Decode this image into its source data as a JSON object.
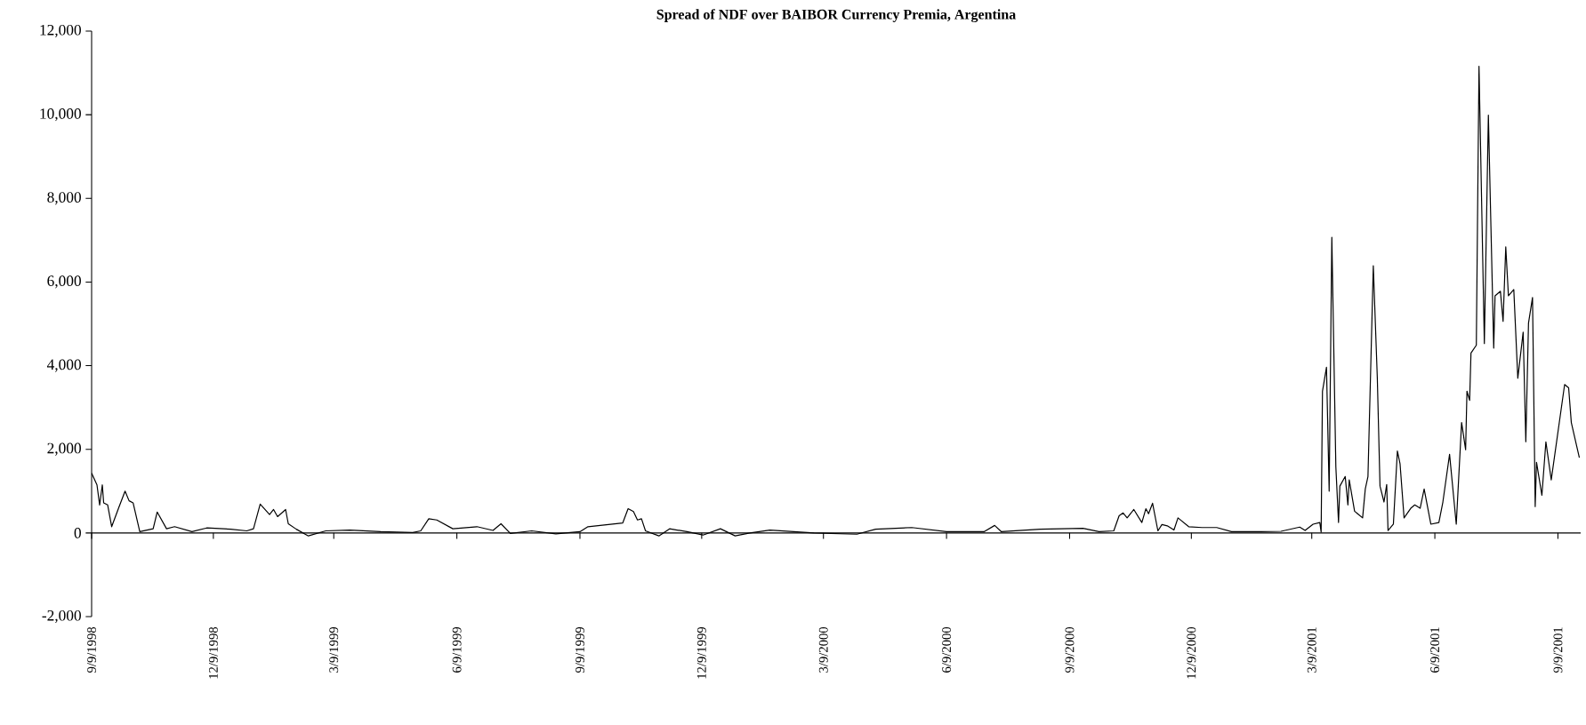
{
  "chart_data": {
    "type": "line",
    "title": "Spread of  NDF over BAIBOR Currency Premia, Argentina",
    "x": [
      "1998-09-09",
      "1998-09-13",
      "1998-09-15",
      "1998-09-17",
      "1998-09-18",
      "1998-09-21",
      "1998-09-24",
      "1998-09-29",
      "1998-10-04",
      "1998-10-07",
      "1998-10-10",
      "1998-10-15",
      "1998-10-25",
      "1998-10-28",
      "1998-11-04",
      "1998-11-10",
      "1998-11-23",
      "1998-12-04",
      "1998-12-22",
      "1999-01-03",
      "1999-01-08",
      "1999-01-13",
      "1999-01-20",
      "1999-01-23",
      "1999-01-26",
      "1999-02-01",
      "1999-02-03",
      "1999-02-09",
      "1999-02-18",
      "1999-03-03",
      "1999-03-21",
      "1999-04-13",
      "1999-05-07",
      "1999-05-13",
      "1999-05-19",
      "1999-05-25",
      "1999-06-06",
      "1999-06-24",
      "1999-07-06",
      "1999-07-12",
      "1999-07-19",
      "1999-08-04",
      "1999-08-22",
      "1999-09-09",
      "1999-09-15",
      "1999-10-11",
      "1999-10-15",
      "1999-10-19",
      "1999-10-22",
      "1999-10-25",
      "1999-10-28",
      "1999-11-07",
      "1999-11-15",
      "1999-11-28",
      "1999-12-10",
      "1999-12-23",
      "2000-01-03",
      "2000-01-14",
      "2000-01-29",
      "2000-03-02",
      "2000-04-03",
      "2000-04-17",
      "2000-05-14",
      "2000-06-09",
      "2000-07-07",
      "2000-07-15",
      "2000-07-20",
      "2000-08-18",
      "2000-09-19",
      "2000-10-01",
      "2000-10-12",
      "2000-10-16",
      "2000-10-19",
      "2000-10-22",
      "2000-10-27",
      "2000-11-02",
      "2000-11-05",
      "2000-11-07",
      "2000-11-10",
      "2000-11-14",
      "2000-11-17",
      "2000-11-21",
      "2000-11-26",
      "2000-11-29",
      "2000-12-07",
      "2000-12-17",
      "2000-12-28",
      "2001-01-08",
      "2001-01-30",
      "2001-02-14",
      "2001-02-28",
      "2001-03-04",
      "2001-03-10",
      "2001-03-15",
      "2001-03-16",
      "2001-03-17",
      "2001-03-20",
      "2001-03-22",
      "2001-03-24",
      "2001-03-27",
      "2001-03-29",
      "2001-03-30",
      "2001-04-03",
      "2001-04-05",
      "2001-04-06",
      "2001-04-10",
      "2001-04-16",
      "2001-04-18",
      "2001-04-20",
      "2001-04-24",
      "2001-04-27",
      "2001-04-29",
      "2001-05-02",
      "2001-05-04",
      "2001-05-05",
      "2001-05-09",
      "2001-05-12",
      "2001-05-14",
      "2001-05-17",
      "2001-05-22",
      "2001-05-25",
      "2001-05-29",
      "2001-06-01",
      "2001-06-06",
      "2001-06-12",
      "2001-06-15",
      "2001-06-20",
      "2001-06-25",
      "2001-06-29",
      "2001-07-02",
      "2001-07-03",
      "2001-07-05",
      "2001-07-06",
      "2001-07-10",
      "2001-07-12",
      "2001-07-16",
      "2001-07-19",
      "2001-07-23",
      "2001-07-24",
      "2001-07-28",
      "2001-07-30",
      "2001-08-01",
      "2001-08-03",
      "2001-08-07",
      "2001-08-10",
      "2001-08-14",
      "2001-08-16",
      "2001-08-18",
      "2001-08-21",
      "2001-08-23",
      "2001-08-24",
      "2001-08-28",
      "2001-08-31",
      "2001-09-04",
      "2001-09-14",
      "2001-09-17",
      "2001-09-19",
      "2001-09-25"
    ],
    "series": [
      {
        "color": "#000000",
        "values": [
          1430,
          1150,
          670,
          1150,
          720,
          670,
          150,
          580,
          1000,
          770,
          720,
          30,
          100,
          500,
          100,
          150,
          30,
          120,
          90,
          50,
          100,
          690,
          440,
          560,
          390,
          560,
          220,
          90,
          -70,
          50,
          70,
          30,
          10,
          50,
          340,
          310,
          100,
          150,
          60,
          220,
          -10,
          50,
          -20,
          30,
          150,
          240,
          580,
          510,
          310,
          340,
          50,
          -70,
          100,
          30,
          -50,
          100,
          -70,
          0,
          70,
          0,
          -30,
          90,
          130,
          30,
          30,
          180,
          30,
          90,
          110,
          30,
          50,
          410,
          480,
          360,
          560,
          250,
          580,
          460,
          710,
          50,
          200,
          170,
          70,
          360,
          150,
          130,
          130,
          30,
          30,
          40,
          140,
          60,
          210,
          250,
          20,
          3390,
          3960,
          1000,
          7070,
          1580,
          250,
          1120,
          1350,
          670,
          1270,
          520,
          360,
          1050,
          1350,
          6390,
          3700,
          1120,
          740,
          1160,
          60,
          210,
          1960,
          1650,
          360,
          590,
          670,
          590,
          1050,
          210,
          250,
          740,
          1880,
          210,
          2640,
          1990,
          3390,
          3170,
          4300,
          4490,
          11160,
          4530,
          9990,
          4420,
          5670,
          5780,
          5060,
          6840,
          5670,
          5820,
          3700,
          4800,
          2180,
          5020,
          5630,
          630,
          1690,
          900,
          2180,
          1270,
          3550,
          3470,
          2640,
          1800
        ]
      }
    ],
    "xlim": [
      "1998-09-09",
      "2001-09-26"
    ],
    "ylim": [
      -2000,
      12000
    ],
    "xticks": [
      {
        "value": "1998-09-09",
        "label": "9/9/1998"
      },
      {
        "value": "1998-12-09",
        "label": "12/9/1998"
      },
      {
        "value": "1999-03-09",
        "label": "3/9/1999"
      },
      {
        "value": "1999-06-09",
        "label": "6/9/1999"
      },
      {
        "value": "1999-09-09",
        "label": "9/9/1999"
      },
      {
        "value": "1999-12-09",
        "label": "12/9/1999"
      },
      {
        "value": "2000-03-09",
        "label": "3/9/2000"
      },
      {
        "value": "2000-06-09",
        "label": "6/9/2000"
      },
      {
        "value": "2000-09-09",
        "label": "9/9/2000"
      },
      {
        "value": "2000-12-09",
        "label": "12/9/2000"
      },
      {
        "value": "2001-03-09",
        "label": "3/9/2001"
      },
      {
        "value": "2001-06-09",
        "label": "6/9/2001"
      },
      {
        "value": "2001-09-09",
        "label": "9/9/2001"
      }
    ],
    "yticks": [
      {
        "value": -2000,
        "label": "-2,000"
      },
      0,
      {
        "value": 2000,
        "label": "2,000"
      },
      {
        "value": 4000,
        "label": "4,000"
      },
      {
        "value": 6000,
        "label": "6,000"
      },
      {
        "value": 8000,
        "label": "8,000"
      },
      {
        "value": 10000,
        "label": "10,000"
      },
      {
        "value": 12000,
        "label": "12,000"
      }
    ],
    "marker": "none",
    "line_style": "solid"
  }
}
